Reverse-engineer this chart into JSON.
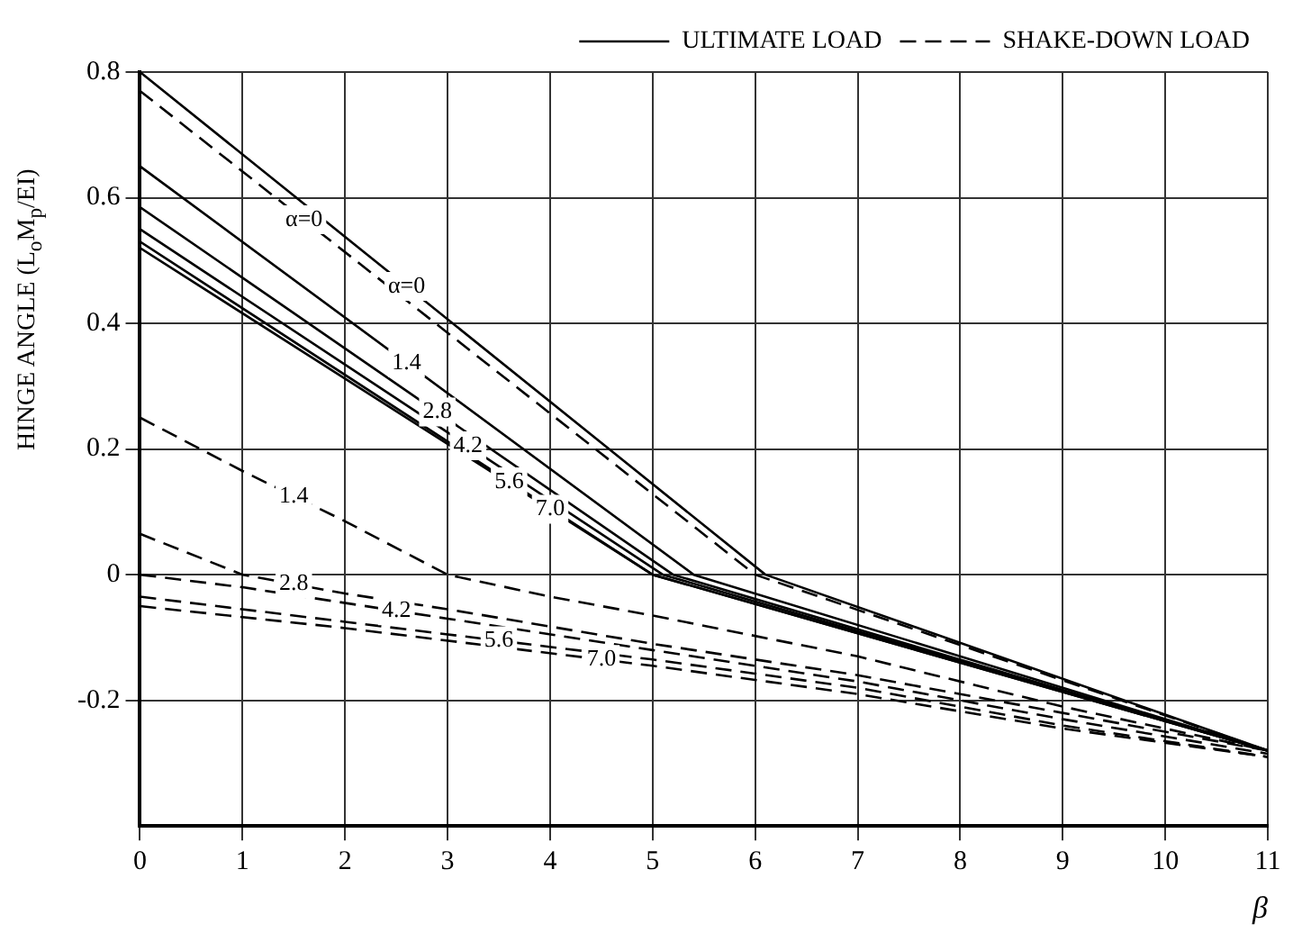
{
  "chart_data": {
    "type": "line",
    "xlabel": "β",
    "ylabel": "HINGE ANGLE (L$_{o}$M$_{p}$/EI)",
    "xlim": [
      0,
      11
    ],
    "xticks": [
      0,
      1,
      2,
      3,
      4,
      5,
      6,
      7,
      8,
      9,
      10,
      11
    ],
    "ylim": [
      -0.4,
      0.8
    ],
    "yticks": [
      -0.2,
      0,
      0.2,
      0.4,
      0.6,
      0.8
    ],
    "grid": true,
    "legend": "top right",
    "marker": "none",
    "series": [
      {
        "name": "ULTIMATE LOAD",
        "color": "#000000",
        "line_style": "solid",
        "x": [
          0,
          6.1,
          11
        ],
        "values": [
          0.8,
          0,
          -0.28
        ]
      },
      {
        "color": "#000000",
        "line_style": "solid",
        "x": [
          0,
          5.4,
          11
        ],
        "values": [
          0.65,
          0,
          -0.28
        ]
      },
      {
        "color": "#000000",
        "line_style": "solid",
        "x": [
          0,
          5.2,
          11
        ],
        "values": [
          0.585,
          0,
          -0.28
        ]
      },
      {
        "color": "#000000",
        "line_style": "solid",
        "x": [
          0,
          5.1,
          11
        ],
        "values": [
          0.55,
          0,
          -0.28
        ]
      },
      {
        "color": "#000000",
        "line_style": "solid",
        "x": [
          0,
          5,
          11
        ],
        "values": [
          0.53,
          0,
          -0.28
        ]
      },
      {
        "color": "#000000",
        "line_style": "solid",
        "x": [
          0,
          5,
          11
        ],
        "values": [
          0.52,
          0,
          -0.28
        ]
      },
      {
        "name": "SHAKE-DOWN LOAD",
        "color": "#000000",
        "line_style": "dashed",
        "x": [
          0,
          6,
          11
        ],
        "values": [
          0.77,
          0,
          -0.28
        ]
      },
      {
        "color": "#000000",
        "line_style": "dashed",
        "x": [
          0,
          1,
          2,
          3,
          4,
          5,
          7,
          9,
          11
        ],
        "values": [
          0.25,
          0.165,
          0.085,
          0,
          -0.035,
          -0.065,
          -0.13,
          -0.21,
          -0.28
        ]
      },
      {
        "color": "#000000",
        "line_style": "dashed",
        "x": [
          0,
          1,
          2,
          3,
          5,
          7,
          9,
          11
        ],
        "values": [
          0.065,
          0,
          -0.03,
          -0.055,
          -0.11,
          -0.16,
          -0.22,
          -0.28
        ]
      },
      {
        "color": "#000000",
        "line_style": "dashed",
        "x": [
          0,
          1,
          3,
          5,
          7,
          9,
          11
        ],
        "values": [
          0,
          -0.02,
          -0.07,
          -0.12,
          -0.17,
          -0.23,
          -0.285
        ]
      },
      {
        "color": "#000000",
        "line_style": "dashed",
        "x": [
          0,
          2,
          5,
          7,
          9,
          11
        ],
        "values": [
          -0.035,
          -0.075,
          -0.135,
          -0.18,
          -0.24,
          -0.29
        ]
      },
      {
        "color": "#000000",
        "line_style": "dashed",
        "x": [
          0,
          2,
          5,
          7,
          9,
          11
        ],
        "values": [
          -0.05,
          -0.085,
          -0.145,
          -0.19,
          -0.245,
          -0.29
        ]
      }
    ],
    "annotations": [
      {
        "text": "α=0",
        "x": 1.6,
        "y": 0.565
      },
      {
        "text": "α=0",
        "x": 2.6,
        "y": 0.459
      },
      {
        "text": "1.4",
        "x": 2.6,
        "y": 0.337
      },
      {
        "text": "2.8",
        "x": 2.9,
        "y": 0.259
      },
      {
        "text": "4.2",
        "x": 3.2,
        "y": 0.205
      },
      {
        "text": "5.6",
        "x": 3.6,
        "y": 0.148
      },
      {
        "text": "7.0",
        "x": 4.0,
        "y": 0.104
      },
      {
        "text": "1.4",
        "x": 1.5,
        "y": 0.125
      },
      {
        "text": "2.8",
        "x": 1.5,
        "y": -0.015
      },
      {
        "text": "4.2",
        "x": 2.5,
        "y": -0.0575
      },
      {
        "text": "5.6",
        "x": 3.5,
        "y": -0.105
      },
      {
        "text": "7.0",
        "x": 4.5,
        "y": -0.135
      }
    ]
  }
}
